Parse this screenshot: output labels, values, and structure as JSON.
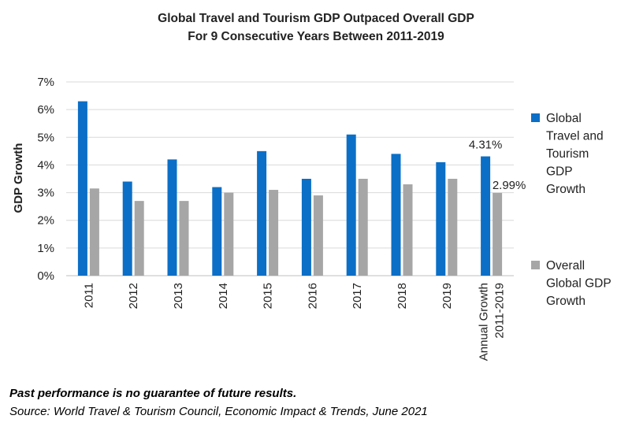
{
  "chart_data": {
    "type": "bar",
    "title_lines": [
      "Global Travel and Tourism GDP Outpaced Overall GDP",
      "For 9 Consecutive Years Between 2011-2019"
    ],
    "categories": [
      "2011",
      "2012",
      "2013",
      "2014",
      "2015",
      "2016",
      "2017",
      "2018",
      "2019",
      "Annual Growth 2011-2019"
    ],
    "category_label_lines": [
      [
        "2011"
      ],
      [
        "2012"
      ],
      [
        "2013"
      ],
      [
        "2014"
      ],
      [
        "2015"
      ],
      [
        "2016"
      ],
      [
        "2017"
      ],
      [
        "2018"
      ],
      [
        "2019"
      ],
      [
        "Annual Growth",
        "2011-2019"
      ]
    ],
    "series": [
      {
        "name": "Global Travel and Tourism GDP Growth",
        "legend_lines": [
          "Global",
          "Travel and",
          "Tourism",
          "GDP",
          "Growth"
        ],
        "color": "#0b6fc7",
        "values": [
          6.3,
          3.4,
          4.2,
          3.2,
          4.5,
          3.5,
          5.1,
          4.4,
          4.1,
          4.31
        ]
      },
      {
        "name": "Overall Global GDP Growth",
        "legend_lines": [
          "Overall",
          "Global GDP",
          "Growth"
        ],
        "color": "#a6a6a6",
        "values": [
          3.15,
          2.7,
          2.7,
          3.0,
          3.1,
          2.9,
          3.5,
          3.3,
          3.5,
          2.99
        ]
      }
    ],
    "data_labels": [
      {
        "series": 0,
        "category": 9,
        "text": "4.31%"
      },
      {
        "series": 1,
        "category": 9,
        "text": "2.99%"
      }
    ],
    "ylabel": "GDP Growth",
    "xlabel": "",
    "ylim": [
      0,
      7
    ],
    "yticks": [
      0,
      1,
      2,
      3,
      4,
      5,
      6,
      7
    ],
    "ytick_labels": [
      "0%",
      "1%",
      "2%",
      "3%",
      "4%",
      "5%",
      "6%",
      "7%"
    ],
    "grid": true,
    "legend_position": "right"
  },
  "footnotes": {
    "disclaimer": "Past performance is no guarantee of future results.",
    "source": "Source: World Travel & Tourism Council, Economic Impact & Trends, June 2021"
  },
  "colors": {
    "grid": "#d9d9d9",
    "axis_text": "#222222"
  }
}
